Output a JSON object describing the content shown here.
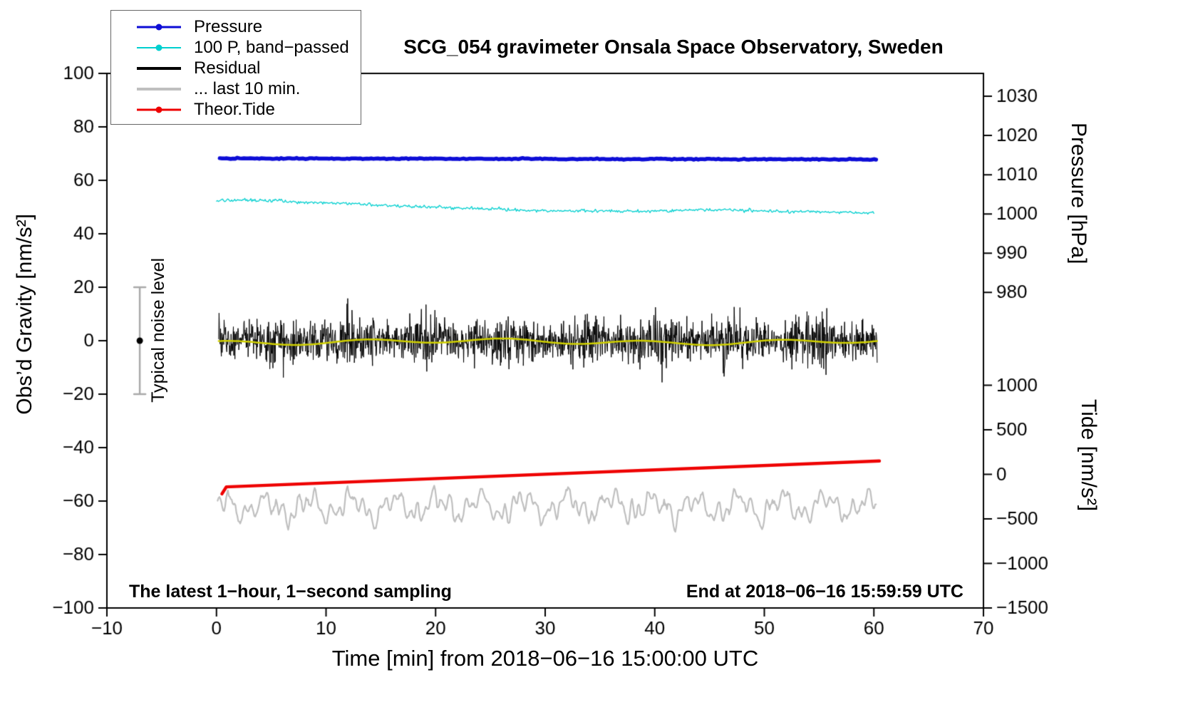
{
  "page": {
    "background": "#ffffff"
  },
  "chart_data": {
    "type": "line",
    "title": "SCG_054 gravimeter Onsala Space Observatory, Sweden",
    "xlabel": "Time [min] from 2018−06−16 15:00:00 UTC",
    "ylabel_left": "Obs’d Gravity [nm/s²]",
    "ylabel_pressure": "Pressure [hPa]",
    "ylabel_tide": "Tide [nm/s²]",
    "annotation_left": "The latest 1−hour, 1−second sampling",
    "annotation_right": "End at 2018−06−16 15:59:59 UTC",
    "noise_label": "Typical noise level",
    "xlim": [
      -10,
      70
    ],
    "ylim_left": [
      -100,
      100
    ],
    "x_ticks": [
      -10,
      0,
      10,
      20,
      30,
      40,
      50,
      60,
      70
    ],
    "y_ticks_left": [
      -100,
      -80,
      -60,
      -40,
      -20,
      0,
      20,
      40,
      60,
      80,
      100
    ],
    "pressure_axis": {
      "ticks": [
        1030,
        1020,
        1010,
        1000,
        990,
        980
      ],
      "gravity_at_1010": 62.1,
      "gravity_per_hpa": 1.4667
    },
    "tide_axis": {
      "ticks": [
        1000,
        500,
        0,
        -500,
        -1000,
        -1500
      ],
      "gravity_at_zero": -50,
      "gravity_per_unit": 0.033333
    },
    "noise_marker": {
      "x": -7,
      "center": 0,
      "half_range": 20,
      "bar_color": "#a9a9a9",
      "dot_color": "#000000"
    },
    "legend": [
      {
        "label": "Pressure",
        "color": "#0d0dd6",
        "dot": true,
        "line_width": 3
      },
      {
        "label": "100 P, band−passed",
        "color": "#00cfcf",
        "dot": true,
        "line_width": 2
      },
      {
        "label": "Residual",
        "color": "#000000",
        "dot": false,
        "line_width": 4
      },
      {
        "label": "... last 10 min.",
        "color": "#bfbfbf",
        "dot": false,
        "line_width": 4
      },
      {
        "label": "Theor.Tide",
        "color": "#ee0000",
        "dot": true,
        "line_width": 3
      }
    ],
    "series": [
      {
        "name": "Residual",
        "kind": "noise",
        "color": "#000000",
        "width": 1,
        "x_range": [
          0.2,
          60.3
        ],
        "points": 1700,
        "mean": 0,
        "std": 4.2,
        "spike_prob": 0.012,
        "spike_mult": 2.1,
        "clip": 17,
        "envelope_amp": 0.22,
        "envelope_freq": 0.9
      },
      {
        "name": "Residual smoothed",
        "kind": "harmonics",
        "color": "#d0d000",
        "width": 2.5,
        "x_range": [
          0.2,
          60.3
        ],
        "points": 300,
        "mean": -0.4,
        "components": [
          {
            "amp": 0.8,
            "freq": 0.5,
            "phase": 1.0
          },
          {
            "amp": 0.5,
            "freq": 0.16,
            "phase": 4.2
          }
        ],
        "jitter": 0
      },
      {
        "name": "... last 10 min.",
        "kind": "harmonics",
        "color": "#bfbfbf",
        "width": 2.2,
        "x_range": [
          0.1,
          60.2
        ],
        "points": 700,
        "mean": -62,
        "components": [
          {
            "amp": 3.4,
            "freq": 1.6,
            "phase": 0.7
          },
          {
            "amp": 2.5,
            "freq": 4.1,
            "phase": 2.3
          },
          {
            "amp": 1.8,
            "freq": 8.7,
            "phase": 5.0
          }
        ],
        "jitter": 1.6
      },
      {
        "name": "Theor.Tide",
        "kind": "line",
        "color": "#ee0000",
        "width": 4.5,
        "x": [
          0.5,
          0.9,
          60.5
        ],
        "y": [
          -57.3,
          -54.7,
          -45.0
        ],
        "points": 3,
        "noise": 0
      },
      {
        "name": "Pressure",
        "kind": "line",
        "color": "#0d0dd6",
        "width": 5.5,
        "x": [
          0.3,
          60.2
        ],
        "y": [
          68.2,
          67.8
        ],
        "points": 300,
        "noise": 0.1
      },
      {
        "name": "100 P, band−passed",
        "kind": "line",
        "color": "#00cfcf",
        "width": 1.3,
        "points": 650,
        "noise": 0.28,
        "x": [
          0,
          3,
          5,
          8,
          12,
          15,
          18,
          20,
          23,
          26,
          28,
          30,
          33,
          36,
          39,
          42,
          44,
          46,
          50,
          53,
          56,
          58,
          60
        ],
        "y": [
          52.3,
          52.6,
          52.4,
          51.8,
          51.3,
          50.8,
          50.3,
          50.0,
          49.6,
          49.2,
          48.8,
          48.5,
          48.6,
          48.5,
          48.4,
          48.8,
          49.0,
          48.9,
          48.6,
          48.3,
          48.1,
          48.0,
          47.9
        ]
      }
    ]
  }
}
